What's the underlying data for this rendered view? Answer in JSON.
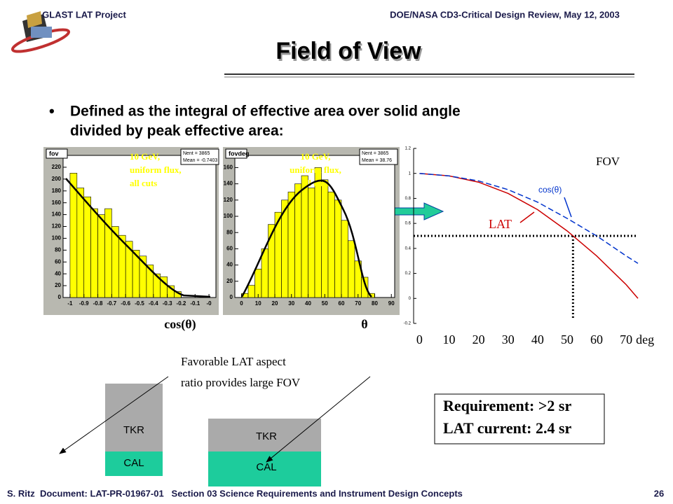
{
  "header": {
    "left": "GLAST LAT Project",
    "right": "DOE/NASA CD3-Critical Design Review, May 12, 2003"
  },
  "title": "Field of View",
  "bullet": [
    "Defined as the integral of effective area over solid angle",
    "divided by peak effective area:"
  ],
  "histograms": [
    {
      "type": "histogram",
      "title": "fov",
      "stats": [
        "Nent = 3865",
        "Mean = -0.7403"
      ],
      "annotation": [
        "10 GeV,",
        "uniform flux,",
        "all cuts"
      ],
      "xlabel": "cos(θ)",
      "color": "#ffff00",
      "bins": [
        -1,
        -0.95,
        -0.9,
        -0.85,
        -0.8,
        -0.75,
        -0.7,
        -0.65,
        -0.6,
        -0.55,
        -0.5,
        -0.45,
        -0.4,
        -0.35,
        -0.3,
        -0.25,
        -0.2,
        -0.15,
        -0.1,
        -0.05,
        0
      ],
      "counts": [
        210,
        185,
        170,
        150,
        140,
        150,
        120,
        105,
        95,
        80,
        70,
        55,
        40,
        35,
        20,
        10,
        0,
        0,
        0,
        0
      ],
      "xlim": [
        -1.05,
        0.05
      ],
      "ylim": [
        0,
        240
      ],
      "xticks": [
        -1,
        -0.9,
        -0.8,
        -0.7,
        -0.6,
        -0.5,
        -0.4,
        -0.3,
        -0.2,
        -0.1,
        {
          "value": 0,
          "label": "-0"
        }
      ],
      "yticks": [
        0,
        20,
        40,
        60,
        80,
        100,
        120,
        140,
        160,
        180,
        200,
        220
      ]
    },
    {
      "type": "histogram",
      "title": "fovdeg",
      "stats": [
        "Nent = 3865",
        "Mean = 38.76"
      ],
      "annotation": [
        "10 GeV,",
        "uniform flux,",
        "all cuts"
      ],
      "xlabel": "θ",
      "color": "#ffff00",
      "bins": [
        0,
        4,
        8,
        12,
        16,
        20,
        24,
        28,
        32,
        36,
        40,
        44,
        48,
        52,
        56,
        60,
        64,
        68,
        72,
        76,
        80
      ],
      "counts": [
        5,
        15,
        35,
        60,
        90,
        105,
        120,
        130,
        140,
        150,
        135,
        160,
        145,
        130,
        120,
        95,
        70,
        45,
        25,
        5
      ],
      "xlim": [
        -4,
        92
      ],
      "ylim": [
        0,
        175
      ],
      "xticks": [
        0,
        10,
        20,
        30,
        40,
        50,
        60,
        70,
        80,
        90
      ],
      "yticks": [
        0,
        20,
        40,
        60,
        80,
        100,
        120,
        140,
        160
      ]
    }
  ],
  "fov_chart": {
    "type": "line",
    "x": [
      0,
      10,
      20,
      30,
      40,
      50,
      60,
      70,
      74
    ],
    "series": [
      {
        "name": "LAT",
        "color": "#cc0000",
        "values": [
          1,
          0.98,
          0.93,
          0.84,
          0.71,
          0.54,
          0.34,
          0.11,
          0
        ]
      },
      {
        "name": "cos(θ)",
        "color": "#0033cc",
        "dashed": true,
        "values": [
          1,
          0.98,
          0.94,
          0.87,
          0.77,
          0.64,
          0.5,
          0.34,
          0.28
        ]
      }
    ],
    "label": "FOV",
    "x_unit": "deg",
    "threshold": {
      "x": 52,
      "y": 0.5
    },
    "xlim": [
      -2,
      74
    ],
    "ylim": [
      -0.2,
      1.2
    ],
    "xticks": [
      0,
      10,
      20,
      30,
      40,
      50,
      60,
      70
    ],
    "yticks": [
      -0.2,
      0,
      0.2,
      0.4,
      0.6,
      0.8,
      1,
      1.2
    ]
  },
  "diagram": {
    "caption": [
      "Favorable LAT aspect",
      "ratio provides large FOV"
    ],
    "tkr": "TKR",
    "cal": "CAL"
  },
  "requirement": [
    "Requirement: >2 sr",
    "LAT current: 2.4 sr"
  ],
  "footer": {
    "left": "S. Ritz  Document: LAT-PR-01967-01   Section 03 Science Requirements and Instrument Design Concepts",
    "page": "26"
  }
}
